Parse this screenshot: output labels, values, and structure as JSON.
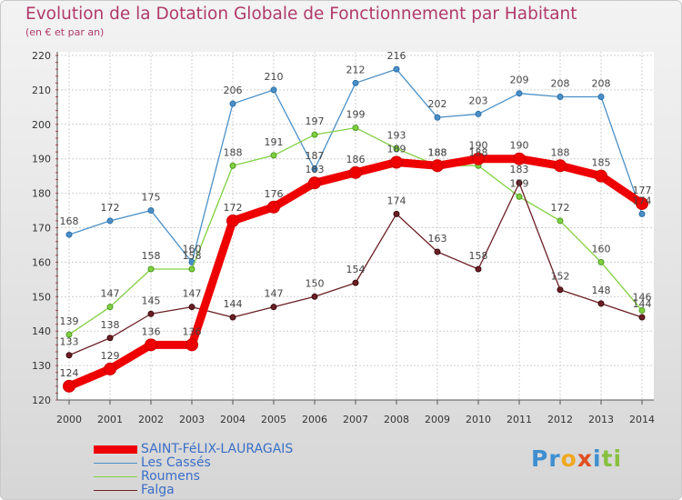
{
  "title": "Evolution de la Dotation Globale de Fonctionnement par Habitant",
  "subtitle": "(en € et par an)",
  "logo": {
    "parts": [
      {
        "text": "Pr",
        "color": "#3f8fd0"
      },
      {
        "text": "o",
        "color": "#f0a820"
      },
      {
        "text": "x",
        "color": "#e05020"
      },
      {
        "text": "i",
        "color": "#3f8fd0"
      },
      {
        "text": "ti",
        "color": "#88c040"
      }
    ]
  },
  "chart_data": {
    "type": "line",
    "title": "Evolution de la Dotation Globale de Fonctionnement par Habitant",
    "ylabel": "(en € et par an)",
    "xlabel": "",
    "ylim": [
      120,
      220
    ],
    "yticks": [
      120,
      130,
      140,
      150,
      160,
      170,
      180,
      190,
      200,
      210,
      220
    ],
    "grid": true,
    "legend_position": "bottom-left",
    "categories": [
      "2000",
      "2001",
      "2002",
      "2003",
      "2004",
      "2005",
      "2006",
      "2007",
      "2008",
      "2009",
      "2010",
      "2011",
      "2012",
      "2013",
      "2014"
    ],
    "series": [
      {
        "name": "Les Cassés",
        "color": "#4a90c8",
        "values": [
          168,
          172,
          175,
          160,
          206,
          210,
          187,
          212,
          216,
          202,
          203,
          209,
          208,
          208,
          174
        ]
      },
      {
        "name": "Roumens",
        "color": "#80d040",
        "values": [
          139,
          147,
          158,
          158,
          188,
          191,
          197,
          199,
          193,
          188,
          188,
          179,
          172,
          160,
          146
        ]
      },
      {
        "name": "Falga",
        "color": "#6b1f24",
        "values": [
          133,
          138,
          145,
          147,
          144,
          147,
          150,
          154,
          174,
          163,
          158,
          183,
          152,
          148,
          144
        ]
      },
      {
        "name": "SAINT-FéLIX-LAURAGAIS",
        "color": "#ee0000",
        "values": [
          124,
          129,
          136,
          136,
          172,
          176,
          183,
          186,
          189,
          188,
          190,
          190,
          188,
          185,
          177
        ]
      }
    ],
    "legend_order": [
      "SAINT-FéLIX-LAURAGAIS",
      "Les Cassés",
      "Roumens",
      "Falga"
    ]
  }
}
